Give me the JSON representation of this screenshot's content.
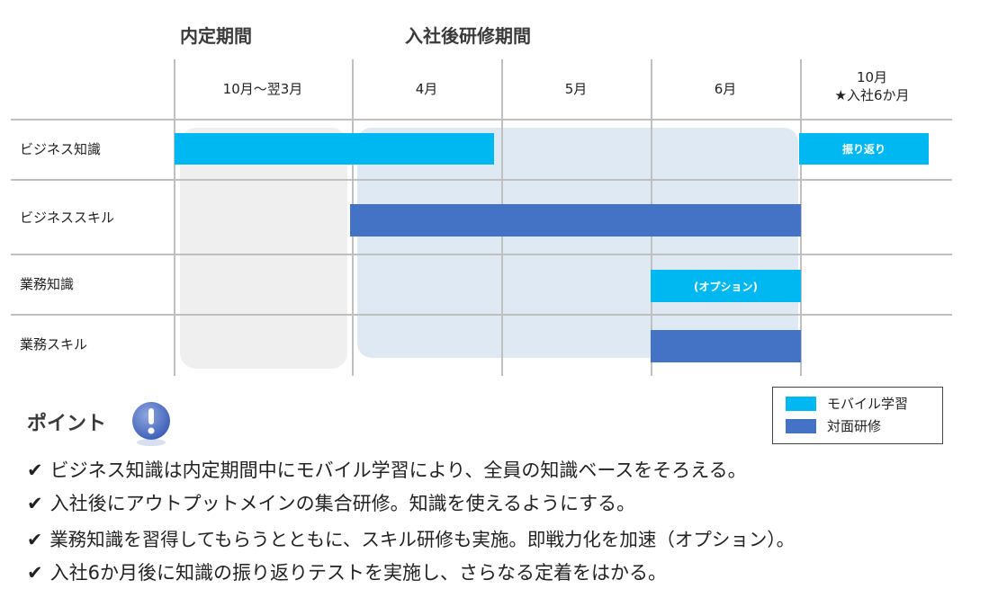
{
  "phases": {
    "naitei": "内定期間",
    "training": "入社後研修期間"
  },
  "columns": [
    "10月～翌3月",
    "4月",
    "5月",
    "6月"
  ],
  "last_column": {
    "line1": "10月",
    "line2": "★入社6か月"
  },
  "rows": [
    "ビジネス知識",
    "ビジネススキル",
    "業務知識",
    "業務スキル"
  ],
  "bars": {
    "review_label": "振り返り",
    "option_label": "(オプション)"
  },
  "legend": {
    "mobile": "モバイル学習",
    "face_to_face": "対面研修"
  },
  "colors": {
    "mobile": "#00b8f1",
    "face_to_face": "#4472c4",
    "naitei_bg": "#efefef",
    "training_bg": "#dfe9f4"
  },
  "point": {
    "title": "ポイント",
    "icon": "exclamation-icon"
  },
  "bullets": [
    "ビジネス知識は内定期間中にモバイル学習により、全員の知識ベースをそろえる。",
    "入社後にアウトプットメインの集合研修。知識を使えるようにする。",
    "業務知識を習得してもらうとともに、スキル研修も実施。即戦力化を加速（オプション）。",
    "入社6か月後に知識の振り返りテストを実施し、さらなる定着をはかる。"
  ],
  "check_mark": "✔"
}
